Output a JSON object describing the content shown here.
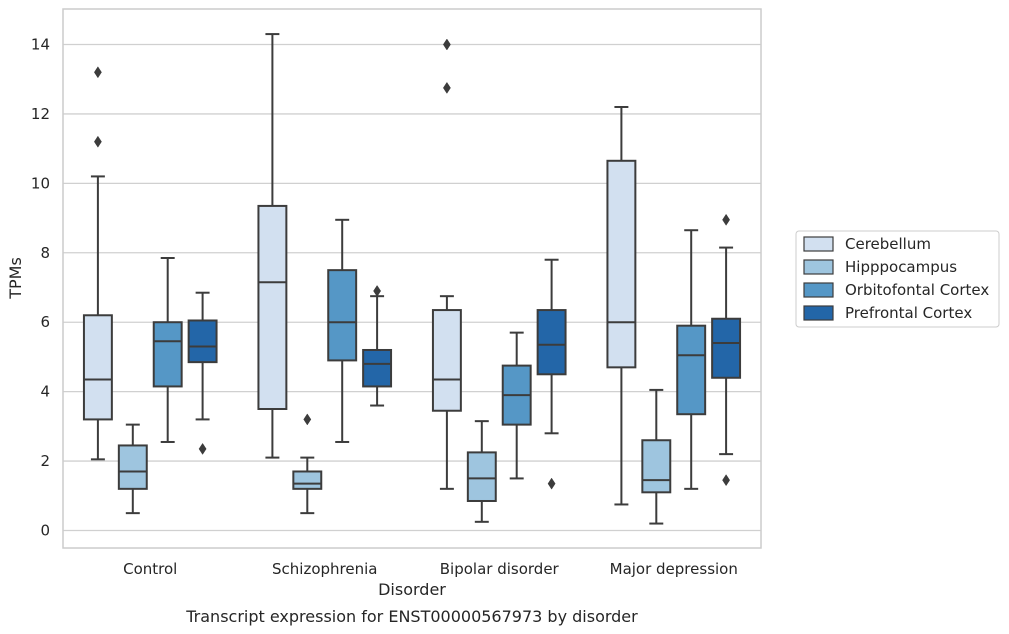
{
  "chart_data": {
    "type": "box",
    "caption": "Transcript expression for ENST00000567973 by disorder",
    "xlabel": "Disorder",
    "ylabel": "TPMs",
    "ylim": [
      -0.4,
      15
    ],
    "yticks": [
      0,
      2,
      4,
      6,
      8,
      10,
      12,
      14
    ],
    "grid": "horizontal",
    "legend_position": "right",
    "categories": [
      "Control",
      "Schizophrenia",
      "Bipolar disorder",
      "Major depression"
    ],
    "series": [
      {
        "name": "Cerebellum",
        "color": "#d2e0f0",
        "boxes": [
          {
            "whisker_low": 2.05,
            "q1": 3.2,
            "median": 4.35,
            "q3": 6.2,
            "whisker_high": 10.2,
            "outliers": [
              11.2,
              13.2
            ]
          },
          {
            "whisker_low": 2.1,
            "q1": 3.5,
            "median": 7.15,
            "q3": 9.35,
            "whisker_high": 14.3,
            "outliers": []
          },
          {
            "whisker_low": 1.2,
            "q1": 3.45,
            "median": 4.35,
            "q3": 6.35,
            "whisker_high": 6.75,
            "outliers": [
              12.75,
              14.0
            ]
          },
          {
            "whisker_low": 0.75,
            "q1": 4.7,
            "median": 6.0,
            "q3": 10.65,
            "whisker_high": 12.2,
            "outliers": []
          }
        ]
      },
      {
        "name": "Hipppocampus",
        "color": "#9ec5df",
        "boxes": [
          {
            "whisker_low": 0.5,
            "q1": 1.2,
            "median": 1.7,
            "q3": 2.45,
            "whisker_high": 3.05,
            "outliers": []
          },
          {
            "whisker_low": 0.5,
            "q1": 1.2,
            "median": 1.35,
            "q3": 1.7,
            "whisker_high": 2.1,
            "outliers": [
              3.2
            ]
          },
          {
            "whisker_low": 0.25,
            "q1": 0.85,
            "median": 1.5,
            "q3": 2.25,
            "whisker_high": 3.15,
            "outliers": []
          },
          {
            "whisker_low": 0.2,
            "q1": 1.1,
            "median": 1.45,
            "q3": 2.6,
            "whisker_high": 4.05,
            "outliers": []
          }
        ]
      },
      {
        "name": "Orbitofontal Cortex",
        "color": "#5597c6",
        "boxes": [
          {
            "whisker_low": 2.55,
            "q1": 4.15,
            "median": 5.45,
            "q3": 6.0,
            "whisker_high": 7.85,
            "outliers": []
          },
          {
            "whisker_low": 2.55,
            "q1": 4.9,
            "median": 6.0,
            "q3": 7.5,
            "whisker_high": 8.95,
            "outliers": []
          },
          {
            "whisker_low": 1.5,
            "q1": 3.05,
            "median": 3.9,
            "q3": 4.75,
            "whisker_high": 5.7,
            "outliers": []
          },
          {
            "whisker_low": 1.2,
            "q1": 3.35,
            "median": 5.05,
            "q3": 5.9,
            "whisker_high": 8.65,
            "outliers": []
          }
        ]
      },
      {
        "name": "Prefrontal Cortex",
        "color": "#2366a8",
        "boxes": [
          {
            "whisker_low": 3.2,
            "q1": 4.85,
            "median": 5.3,
            "q3": 6.05,
            "whisker_high": 6.85,
            "outliers": [
              2.35
            ]
          },
          {
            "whisker_low": 3.6,
            "q1": 4.15,
            "median": 4.8,
            "q3": 5.2,
            "whisker_high": 6.75,
            "outliers": [
              6.9
            ]
          },
          {
            "whisker_low": 2.8,
            "q1": 4.5,
            "median": 5.35,
            "q3": 6.35,
            "whisker_high": 7.8,
            "outliers": [
              1.35
            ]
          },
          {
            "whisker_low": 2.2,
            "q1": 4.4,
            "median": 5.4,
            "q3": 6.1,
            "whisker_high": 8.15,
            "outliers": [
              1.45,
              8.95
            ]
          }
        ]
      }
    ]
  }
}
